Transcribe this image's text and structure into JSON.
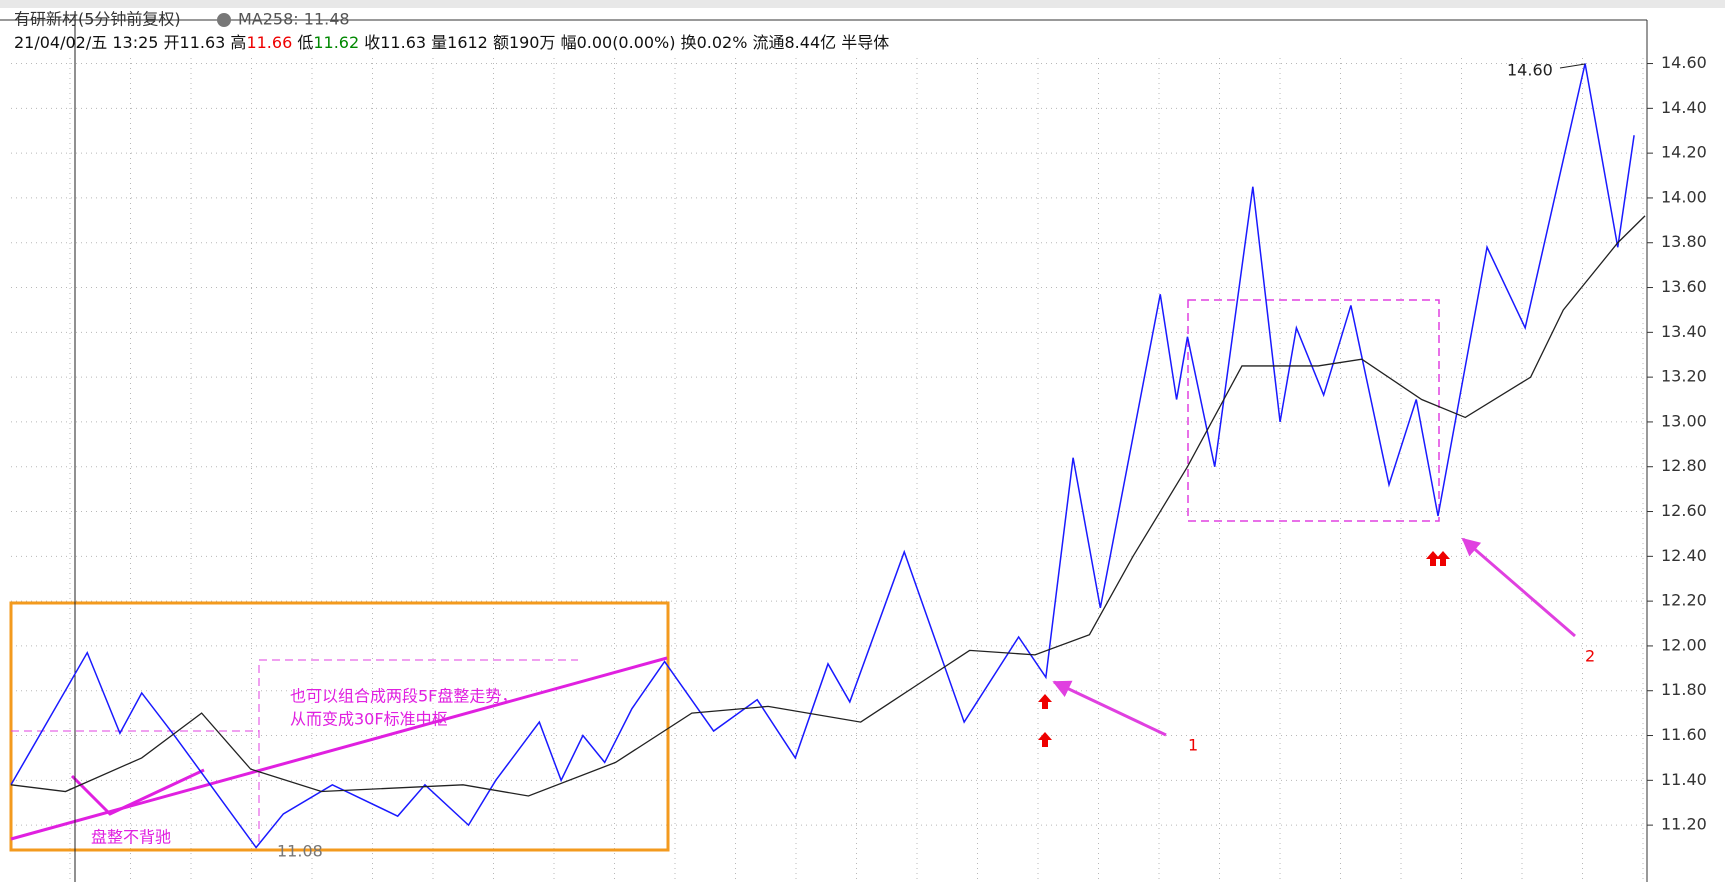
{
  "header": {
    "title": "有研新材(5分钟前复权)",
    "ma_label": "MA258: 11.48",
    "info": [
      "21/04/02/五 13:25 开11.63 高",
      "11.66",
      " 低",
      "11.62",
      " 收11.63 量1612 额190万 幅0.00(0.00%) 换0.02% 流通8.44亿 半导体"
    ]
  },
  "chart_data": {
    "type": "line",
    "xlim": [
      0,
      300
    ],
    "ylim": [
      10.955,
      14.81
    ],
    "yticks": [
      {
        "value": 11.2,
        "label": "11.20"
      },
      {
        "value": 11.4,
        "label": "11.40"
      },
      {
        "value": 11.6,
        "label": "11.60"
      },
      {
        "value": 11.8,
        "label": "11.80"
      },
      {
        "value": 12.0,
        "label": "12.00"
      },
      {
        "value": 12.2,
        "label": "12.20"
      },
      {
        "value": 12.4,
        "label": "12.40"
      },
      {
        "value": 12.6,
        "label": "12.60"
      },
      {
        "value": 12.8,
        "label": "12.80"
      },
      {
        "value": 13.0,
        "label": "13.00"
      },
      {
        "value": 13.2,
        "label": "13.20"
      },
      {
        "value": 13.4,
        "label": "13.40"
      },
      {
        "value": 13.6,
        "label": "13.60"
      },
      {
        "value": 13.8,
        "label": "13.80"
      },
      {
        "value": 14.0,
        "label": "14.00"
      },
      {
        "value": 14.2,
        "label": "14.20"
      },
      {
        "value": 14.4,
        "label": "14.40"
      },
      {
        "value": 14.6,
        "label": "14.60"
      }
    ],
    "grid": true,
    "series": [
      {
        "color": "#1a1aff",
        "x": [
          0,
          14,
          20,
          24,
          30,
          45,
          50,
          59,
          71,
          76,
          84,
          89,
          97,
          101,
          105,
          109,
          114,
          120,
          129,
          137,
          144,
          150,
          154,
          164,
          175,
          185,
          190,
          195,
          200,
          211,
          214,
          216,
          221,
          228,
          233,
          236,
          241,
          246,
          253,
          258,
          262,
          271,
          278,
          289,
          295,
          298
        ],
        "values": [
          11.38,
          11.97,
          11.61,
          11.79,
          11.6,
          11.1,
          11.25,
          11.38,
          11.24,
          11.38,
          11.2,
          11.4,
          11.66,
          11.4,
          11.6,
          11.48,
          11.72,
          11.93,
          11.62,
          11.76,
          11.5,
          11.92,
          11.75,
          12.42,
          11.66,
          12.04,
          11.86,
          12.84,
          12.17,
          13.57,
          13.1,
          13.38,
          12.8,
          14.05,
          13.0,
          13.42,
          13.12,
          13.52,
          12.72,
          13.1,
          12.58,
          13.78,
          13.42,
          14.6,
          13.78,
          14.28
        ]
      },
      {
        "color": "#222222",
        "x": [
          0,
          10,
          24,
          35,
          44,
          57,
          83,
          95,
          111,
          125,
          139,
          156,
          166,
          176,
          188,
          198,
          206,
          216,
          226,
          240,
          248,
          259,
          267,
          279,
          285,
          295,
          300
        ],
        "values": [
          11.38,
          11.35,
          11.5,
          11.7,
          11.45,
          11.35,
          11.38,
          11.33,
          11.48,
          11.7,
          11.73,
          11.66,
          11.82,
          11.98,
          11.96,
          12.05,
          12.4,
          12.8,
          13.25,
          13.25,
          13.28,
          13.1,
          13.02,
          13.2,
          13.5,
          13.8,
          13.92
        ]
      }
    ],
    "annotations": [
      "也可以组合成两段5F盘整走势，",
      "从而变成30F标准中枢",
      "盘整不背驰",
      "1",
      "2",
      "14.60",
      "11.08"
    ]
  }
}
